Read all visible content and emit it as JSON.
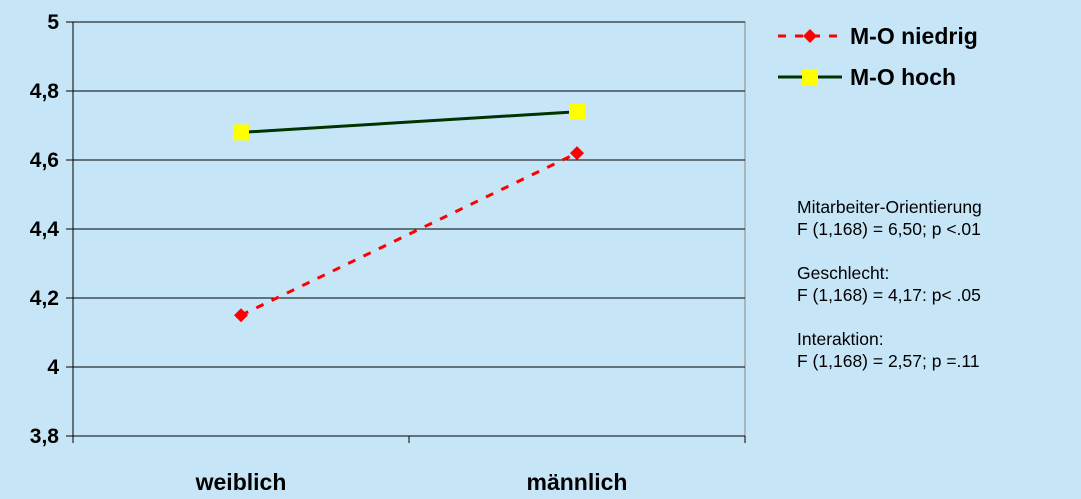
{
  "chart_data": {
    "type": "line",
    "categories": [
      "weiblich",
      "männlich"
    ],
    "ylim": [
      3.8,
      5.0
    ],
    "yticks": [
      "3,8",
      "4",
      "4,2",
      "4,4",
      "4,6",
      "4,8",
      "5"
    ],
    "ytick_values": [
      3.8,
      4.0,
      4.2,
      4.4,
      4.6,
      4.8,
      5.0
    ],
    "grid": true,
    "legend_position": "top-right",
    "series": [
      {
        "name": "M-O niedrig",
        "values": [
          4.15,
          4.62
        ],
        "color": "#ff0000",
        "marker_color": "#ff0000",
        "line_style": "dashed",
        "marker": "diamond"
      },
      {
        "name": "M-O hoch",
        "values": [
          4.68,
          4.74
        ],
        "color": "#003300",
        "marker_color": "#ffff00",
        "line_style": "solid",
        "marker": "square"
      }
    ],
    "colors": {
      "background": "#c6e6f8",
      "grid": "#000000"
    }
  },
  "stats": [
    {
      "title": "Mitarbeiter-Orientierung",
      "value": "F (1,168) =  6,50; p <.01"
    },
    {
      "title": "Geschlecht:",
      "value": "F (1,168) =  4,17: p< .05"
    },
    {
      "title": "Interaktion:",
      "value": "F (1,168) = 2,57; p =.11"
    }
  ]
}
